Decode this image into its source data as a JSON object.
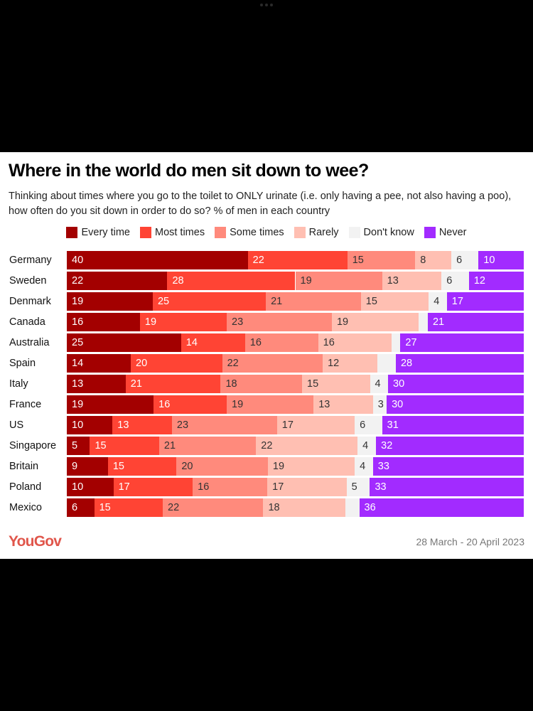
{
  "chart_data": {
    "type": "bar",
    "orientation": "horizontal",
    "stacked": true,
    "title": "Where in the world do men sit down to wee?",
    "subtitle": "Thinking about times where you go to the toilet to ONLY urinate (i.e. only having a pee, not also having a poo), how often do you sit down in order to do so? % of men in each country",
    "xlabel": "",
    "ylabel": "",
    "xlim": [
      0,
      100
    ],
    "grid": false,
    "legend_position": "top-center",
    "categories": [
      "Germany",
      "Sweden",
      "Denmark",
      "Canada",
      "Australia",
      "Spain",
      "Italy",
      "France",
      "US",
      "Singapore",
      "Britain",
      "Poland",
      "Mexico"
    ],
    "series": [
      {
        "name": "Every time",
        "color": "#a30000",
        "label_color": "#ffffff",
        "values": [
          40,
          22,
          19,
          16,
          25,
          14,
          13,
          19,
          10,
          5,
          9,
          10,
          6
        ]
      },
      {
        "name": "Most times",
        "color": "#ff4434",
        "label_color": "#ffffff",
        "values": [
          22,
          28,
          25,
          19,
          14,
          20,
          21,
          16,
          13,
          15,
          15,
          17,
          15
        ]
      },
      {
        "name": "Some times",
        "color": "#ff8a7c",
        "label_color": "#333333",
        "values": [
          15,
          19,
          21,
          23,
          16,
          22,
          18,
          19,
          23,
          21,
          20,
          16,
          22
        ]
      },
      {
        "name": "Rarely",
        "color": "#ffbfb2",
        "label_color": "#333333",
        "values": [
          8,
          13,
          15,
          19,
          16,
          12,
          15,
          13,
          17,
          22,
          19,
          17,
          18
        ]
      },
      {
        "name": "Don't know",
        "color": "#f2f2f2",
        "label_color": "#333333",
        "values": [
          6,
          6,
          4,
          2,
          2,
          4,
          4,
          3,
          6,
          4,
          4,
          5,
          3
        ],
        "labels_shown": [
          true,
          true,
          true,
          false,
          false,
          false,
          true,
          true,
          true,
          true,
          true,
          true,
          false
        ]
      },
      {
        "name": "Never",
        "color": "#a22bff",
        "label_color": "#ffffff",
        "values": [
          10,
          12,
          17,
          21,
          27,
          28,
          30,
          30,
          31,
          32,
          33,
          33,
          36
        ]
      }
    ]
  },
  "footer": {
    "brand": "YouGov",
    "brand_color": "#e0564b",
    "date_range": "28 March - 20 April 2023"
  }
}
